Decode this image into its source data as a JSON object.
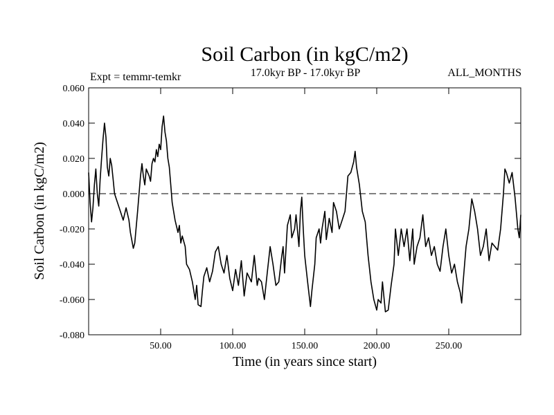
{
  "chart_data": {
    "type": "line",
    "title": "Soil Carbon (in kgC/m2)",
    "subtitle": "17.0kyr BP - 17.0kyr BP",
    "experiment_label": "Expt = temmr-temkr",
    "months_label": "ALL_MONTHS",
    "xlabel": "Time (in years since start)",
    "ylabel": "Soil Carbon (in kgC/m2)",
    "xlim": [
      0,
      300
    ],
    "ylim": [
      -0.08,
      0.06
    ],
    "xticks": [
      {
        "value": 50,
        "label": "50.00"
      },
      {
        "value": 100,
        "label": "100.00"
      },
      {
        "value": 150,
        "label": "150.00"
      },
      {
        "value": 200,
        "label": "200.00"
      },
      {
        "value": 250,
        "label": "250.00"
      }
    ],
    "yticks": [
      {
        "value": 0.06,
        "label": "0.060"
      },
      {
        "value": 0.04,
        "label": "0.040"
      },
      {
        "value": 0.02,
        "label": "0.020"
      },
      {
        "value": 0.0,
        "label": "0.000"
      },
      {
        "value": -0.02,
        "label": "-0.020"
      },
      {
        "value": -0.04,
        "label": "-0.040"
      },
      {
        "value": -0.06,
        "label": "-0.060"
      },
      {
        "value": -0.08,
        "label": "-0.080"
      }
    ],
    "reference_line": {
      "y": 0.0,
      "style": "dashed"
    },
    "series": [
      {
        "name": "Soil Carbon",
        "x": [
          0,
          1,
          2,
          3,
          4,
          5,
          6,
          7,
          8,
          9,
          10,
          11,
          12,
          13,
          14,
          15,
          16,
          17,
          18,
          20,
          22,
          24,
          26,
          28,
          29,
          31,
          32,
          34,
          36,
          37,
          38,
          39,
          40,
          42,
          43,
          44,
          45,
          46,
          47,
          48,
          49,
          50,
          51,
          52,
          53,
          54,
          55,
          56,
          57,
          58,
          60,
          62,
          63,
          64,
          65,
          67,
          68,
          70,
          72,
          74,
          75,
          76,
          78,
          79,
          80,
          82,
          84,
          86,
          88,
          90,
          92,
          94,
          96,
          98,
          100,
          102,
          104,
          106,
          108,
          110,
          113,
          115,
          117,
          118,
          120,
          122,
          124,
          126,
          128,
          130,
          132,
          134,
          135,
          136,
          138,
          140,
          141,
          143,
          144,
          146,
          147,
          148,
          149,
          150,
          152,
          154,
          155,
          157,
          158,
          160,
          161,
          162,
          164,
          165,
          167,
          169,
          170,
          172,
          174,
          176,
          178,
          180,
          182,
          184,
          185,
          186,
          188,
          190,
          192,
          194,
          196,
          198,
          200,
          201,
          203,
          204,
          206,
          208,
          210,
          212,
          213,
          215,
          217,
          219,
          221,
          223,
          225,
          226,
          228,
          230,
          232,
          234,
          236,
          238,
          240,
          242,
          244,
          246,
          248,
          250,
          252,
          254,
          256,
          258,
          259,
          260,
          262,
          264,
          266,
          268,
          270,
          272,
          274,
          276,
          278,
          280,
          282,
          284,
          286,
          288,
          289,
          290,
          292,
          294,
          296,
          298,
          299,
          300
        ],
        "values": [
          0.012,
          -0.005,
          -0.016,
          -0.008,
          0.005,
          0.014,
          0.0,
          -0.007,
          0.008,
          0.02,
          0.031,
          0.04,
          0.032,
          0.015,
          0.01,
          0.02,
          0.016,
          0.008,
          0.0,
          -0.005,
          -0.01,
          -0.015,
          -0.008,
          -0.015,
          -0.022,
          -0.031,
          -0.028,
          -0.01,
          0.01,
          0.017,
          0.01,
          0.005,
          0.014,
          0.01,
          0.007,
          0.017,
          0.02,
          0.018,
          0.025,
          0.021,
          0.028,
          0.025,
          0.038,
          0.044,
          0.035,
          0.03,
          0.02,
          0.015,
          0.005,
          -0.005,
          -0.015,
          -0.022,
          -0.018,
          -0.028,
          -0.024,
          -0.03,
          -0.04,
          -0.043,
          -0.05,
          -0.06,
          -0.052,
          -0.063,
          -0.064,
          -0.055,
          -0.047,
          -0.042,
          -0.05,
          -0.044,
          -0.033,
          -0.03,
          -0.04,
          -0.045,
          -0.035,
          -0.048,
          -0.055,
          -0.043,
          -0.052,
          -0.038,
          -0.058,
          -0.045,
          -0.05,
          -0.035,
          -0.052,
          -0.048,
          -0.05,
          -0.06,
          -0.045,
          -0.03,
          -0.04,
          -0.052,
          -0.05,
          -0.036,
          -0.03,
          -0.045,
          -0.018,
          -0.012,
          -0.025,
          -0.02,
          -0.012,
          -0.03,
          -0.01,
          -0.002,
          -0.02,
          -0.035,
          -0.05,
          -0.064,
          -0.055,
          -0.04,
          -0.025,
          -0.02,
          -0.028,
          -0.02,
          -0.01,
          -0.026,
          -0.014,
          -0.022,
          -0.005,
          -0.01,
          -0.02,
          -0.015,
          -0.01,
          0.01,
          0.012,
          0.018,
          0.024,
          0.015,
          0.005,
          -0.01,
          -0.016,
          -0.035,
          -0.05,
          -0.06,
          -0.066,
          -0.06,
          -0.062,
          -0.05,
          -0.067,
          -0.066,
          -0.052,
          -0.04,
          -0.02,
          -0.035,
          -0.02,
          -0.03,
          -0.02,
          -0.038,
          -0.02,
          -0.04,
          -0.03,
          -0.025,
          -0.012,
          -0.03,
          -0.025,
          -0.035,
          -0.03,
          -0.04,
          -0.044,
          -0.03,
          -0.02,
          -0.035,
          -0.045,
          -0.04,
          -0.05,
          -0.056,
          -0.062,
          -0.05,
          -0.03,
          -0.02,
          -0.003,
          -0.01,
          -0.02,
          -0.035,
          -0.03,
          -0.02,
          -0.038,
          -0.028,
          -0.03,
          -0.032,
          -0.02,
          0.0,
          0.014,
          0.012,
          0.006,
          0.012,
          -0.002,
          -0.02,
          -0.025,
          -0.012
        ]
      }
    ]
  }
}
